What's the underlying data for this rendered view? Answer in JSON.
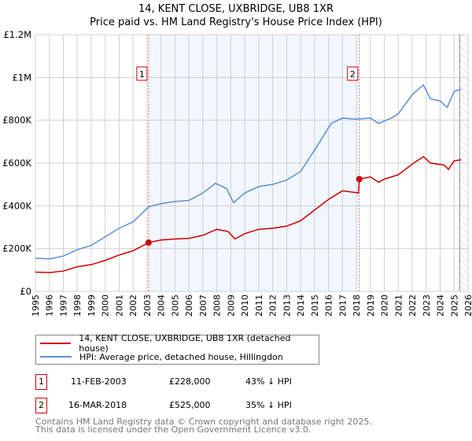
{
  "header": {
    "title": "14, KENT CLOSE, UXBRIDGE, UB8 1XR",
    "subtitle": "Price paid vs. HM Land Registry's House Price Index (HPI)"
  },
  "chart_data": {
    "type": "line",
    "title": "14, KENT CLOSE, UXBRIDGE, UB8 1XR",
    "subtitle": "Price paid vs. HM Land Registry's House Price Index (HPI)",
    "xlim": [
      1995,
      2026
    ],
    "ylim": [
      0,
      1200000
    ],
    "x_ticks": [
      1995,
      1996,
      1997,
      1998,
      1999,
      2000,
      2001,
      2002,
      2003,
      2004,
      2005,
      2006,
      2007,
      2008,
      2009,
      2010,
      2011,
      2012,
      2013,
      2014,
      2015,
      2016,
      2017,
      2018,
      2019,
      2020,
      2021,
      2022,
      2023,
      2024,
      2025,
      2026
    ],
    "y_ticks": [
      {
        "v": 0,
        "label": "£0"
      },
      {
        "v": 200000,
        "label": "£200K"
      },
      {
        "v": 400000,
        "label": "£400K"
      },
      {
        "v": 600000,
        "label": "£600K"
      },
      {
        "v": 800000,
        "label": "£800K"
      },
      {
        "v": 1000000,
        "label": "£1M"
      },
      {
        "v": 1200000,
        "label": "£1.2M"
      }
    ],
    "grid": true,
    "shaded_range": [
      2003.11,
      2018.21
    ],
    "forecast_hatch_from": 2025.4,
    "series": [
      {
        "name": "14, KENT CLOSE, UXBRIDGE, UB8 1XR (detached house)",
        "color": "#cc0000",
        "points": [
          [
            1995,
            90000
          ],
          [
            1996,
            88000
          ],
          [
            1997,
            95000
          ],
          [
            1998,
            115000
          ],
          [
            1999,
            125000
          ],
          [
            2000,
            145000
          ],
          [
            2001,
            170000
          ],
          [
            2002,
            190000
          ],
          [
            2003.11,
            228000
          ],
          [
            2004,
            240000
          ],
          [
            2005,
            245000
          ],
          [
            2006,
            248000
          ],
          [
            2007,
            262000
          ],
          [
            2008,
            290000
          ],
          [
            2008.8,
            280000
          ],
          [
            2009.3,
            245000
          ],
          [
            2010,
            270000
          ],
          [
            2011,
            290000
          ],
          [
            2012,
            295000
          ],
          [
            2013,
            305000
          ],
          [
            2014,
            330000
          ],
          [
            2015,
            380000
          ],
          [
            2016,
            430000
          ],
          [
            2017,
            470000
          ],
          [
            2018.15,
            460000
          ],
          [
            2018.21,
            525000
          ],
          [
            2019,
            535000
          ],
          [
            2019.6,
            510000
          ],
          [
            2020,
            525000
          ],
          [
            2021,
            545000
          ],
          [
            2022,
            595000
          ],
          [
            2022.8,
            630000
          ],
          [
            2023.3,
            600000
          ],
          [
            2024.3,
            590000
          ],
          [
            2024.6,
            570000
          ],
          [
            2025,
            610000
          ],
          [
            2025.5,
            615000
          ]
        ]
      },
      {
        "name": "HPI: Average price, detached house, Hillingdon",
        "color": "#5b8fd4",
        "points": [
          [
            1995,
            155000
          ],
          [
            1996,
            152000
          ],
          [
            1997,
            165000
          ],
          [
            1998,
            195000
          ],
          [
            1999,
            215000
          ],
          [
            2000,
            255000
          ],
          [
            2001,
            295000
          ],
          [
            2002,
            325000
          ],
          [
            2003.11,
            395000
          ],
          [
            2004,
            410000
          ],
          [
            2005,
            420000
          ],
          [
            2006,
            425000
          ],
          [
            2007,
            460000
          ],
          [
            2007.9,
            505000
          ],
          [
            2008.7,
            480000
          ],
          [
            2009.2,
            415000
          ],
          [
            2010,
            460000
          ],
          [
            2011,
            490000
          ],
          [
            2012,
            500000
          ],
          [
            2013,
            520000
          ],
          [
            2014,
            560000
          ],
          [
            2015,
            660000
          ],
          [
            2016.2,
            785000
          ],
          [
            2017,
            810000
          ],
          [
            2018,
            805000
          ],
          [
            2019,
            810000
          ],
          [
            2019.6,
            785000
          ],
          [
            2020.5,
            810000
          ],
          [
            2021,
            830000
          ],
          [
            2022,
            920000
          ],
          [
            2022.8,
            965000
          ],
          [
            2023.3,
            900000
          ],
          [
            2024,
            890000
          ],
          [
            2024.5,
            860000
          ],
          [
            2025,
            935000
          ],
          [
            2025.5,
            945000
          ]
        ]
      }
    ],
    "sales": [
      {
        "label": "1",
        "x": 2003.11,
        "y": 228000
      },
      {
        "label": "2",
        "x": 2018.21,
        "y": 525000
      }
    ]
  },
  "legend": {
    "items": [
      {
        "label": "14, KENT CLOSE, UXBRIDGE, UB8 1XR (detached house)",
        "color": "#cc0000"
      },
      {
        "label": "HPI: Average price, detached house, Hillingdon",
        "color": "#5b8fd4"
      }
    ]
  },
  "sales_table": [
    {
      "num": "1",
      "date": "11-FEB-2003",
      "price": "£228,000",
      "hpi": "43% ↓ HPI"
    },
    {
      "num": "2",
      "date": "16-MAR-2018",
      "price": "£525,000",
      "hpi": "35% ↓ HPI"
    }
  ],
  "footer": {
    "line1": "Contains HM Land Registry data © Crown copyright and database right 2025.",
    "line2": "This data is licensed under the Open Government Licence v3.0."
  }
}
